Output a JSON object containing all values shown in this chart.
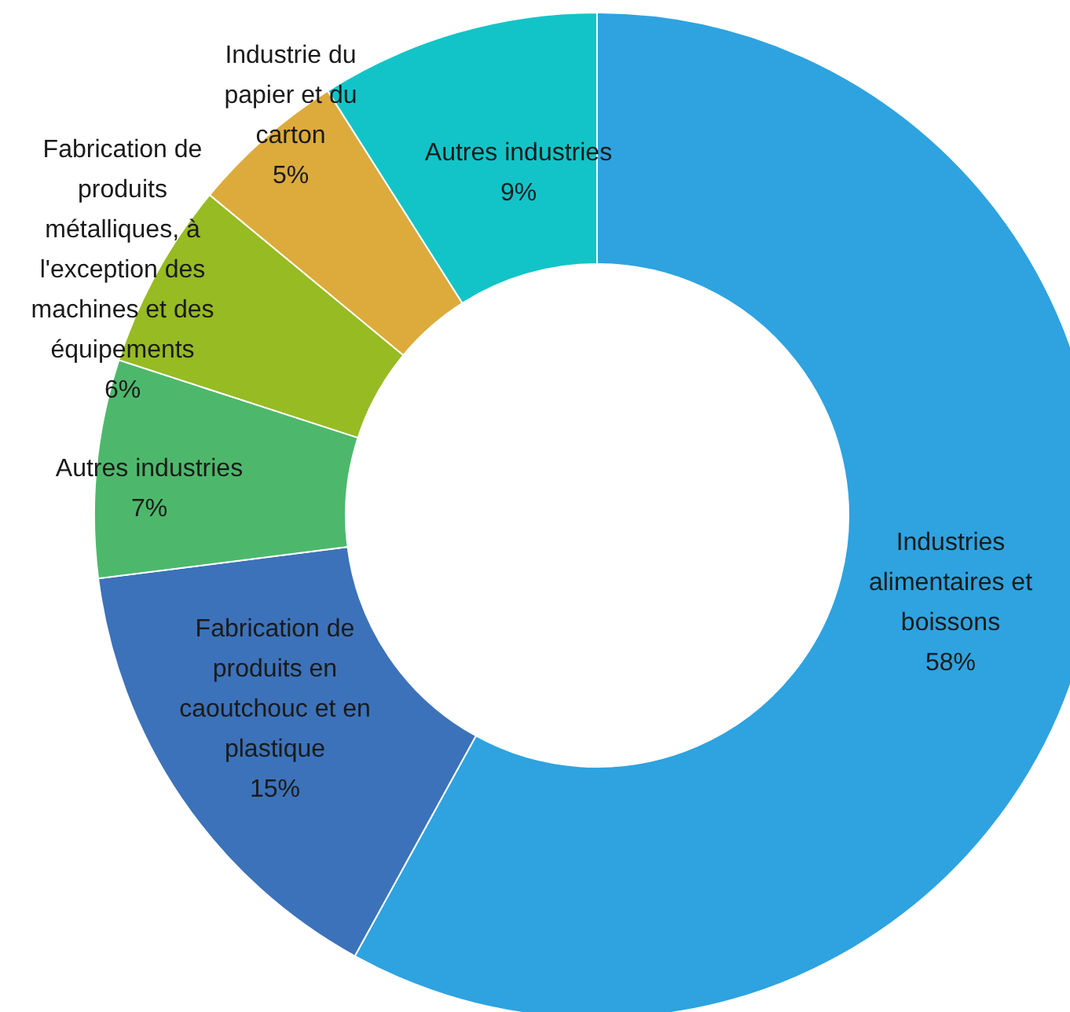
{
  "chart_data": {
    "type": "donut",
    "categories": [
      "Industries alimentaires et boissons",
      "Fabrication de produits en caoutchouc et en plastique",
      "Autres industries",
      "Fabrication de produits métalliques, à l'exception des machines et des équipements",
      "Industrie du papier et du carton",
      "Autres industries"
    ],
    "values": [
      58,
      15,
      7,
      6,
      5,
      9
    ],
    "colors": [
      "#2ea3e0",
      "#3c72b9",
      "#4db86b",
      "#97bb22",
      "#dcab3c",
      "#12c4c8"
    ],
    "value_labels": [
      "58%",
      "15%",
      "7%",
      "6%",
      "5%",
      "9%"
    ],
    "legend": false
  }
}
